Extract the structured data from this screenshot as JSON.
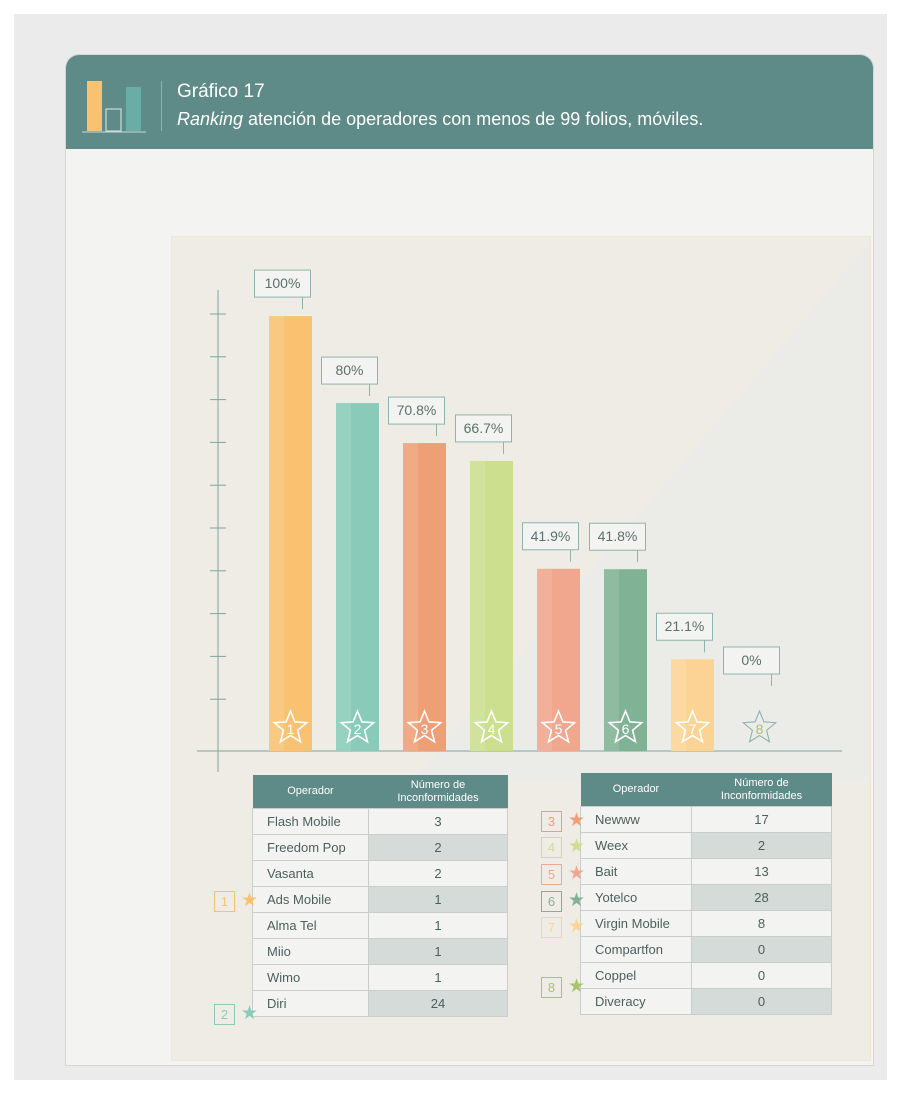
{
  "header": {
    "title": "Gráfico 17",
    "subtitle_em": "Ranking",
    "subtitle_rest": " atención de operadores con menos de 99 folios, móviles."
  },
  "chart_data": {
    "type": "bar",
    "categories": [
      "1",
      "2",
      "3",
      "4",
      "5",
      "6",
      "7",
      "8"
    ],
    "values": [
      100,
      80,
      70.8,
      66.7,
      41.9,
      41.8,
      21.1,
      0
    ],
    "labels": [
      "100%",
      "80%",
      "70.8%",
      "66.7%",
      "41.9%",
      "41.8%",
      "21.1%",
      "0%"
    ],
    "colors": [
      "#f9c270",
      "#89cbb8",
      "#ef9f76",
      "#cbdf8f",
      "#f1a68e",
      "#80b395",
      "#fbd495",
      "#a8c36a"
    ],
    "ylim": [
      0,
      106
    ],
    "grid": false
  },
  "table_left": {
    "col_operador": "Operador",
    "col_num_1": "Número de",
    "col_num_2": "Inconformidades",
    "rows": [
      {
        "name": "Flash Mobile",
        "value": "3"
      },
      {
        "name": "Freedom Pop",
        "value": "2"
      },
      {
        "name": "Vasanta",
        "value": "2"
      },
      {
        "name": "Ads Mobile",
        "value": "1"
      },
      {
        "name": "Alma Tel",
        "value": "1"
      },
      {
        "name": "Miio",
        "value": "1"
      },
      {
        "name": "Wimo",
        "value": "1"
      },
      {
        "name": "Diri",
        "value": "24"
      }
    ]
  },
  "table_right": {
    "col_operador": "Operador",
    "col_num_1": "Número de",
    "col_num_2": "Inconformidades",
    "rows": [
      {
        "name": "Newww",
        "value": "17"
      },
      {
        "name": "Weex",
        "value": "2"
      },
      {
        "name": "Bait",
        "value": "13"
      },
      {
        "name": "Yotelco",
        "value": "28"
      },
      {
        "name": "Virgin Mobile",
        "value": "8"
      },
      {
        "name": "Compartfon",
        "value": "0"
      },
      {
        "name": "Coppel",
        "value": "0"
      },
      {
        "name": "Diveracy",
        "value": "0"
      }
    ]
  },
  "markers_left": [
    {
      "rank": "1",
      "color": "#f9c270"
    },
    {
      "rank": "2",
      "color": "#89cbb8"
    }
  ],
  "markers_right": [
    {
      "rank": "3",
      "color": "#ef9f76"
    },
    {
      "rank": "4",
      "color": "#cbdf8f"
    },
    {
      "rank": "5",
      "color": "#f1a68e"
    },
    {
      "rank": "6",
      "color": "#80b395"
    },
    {
      "rank": "7",
      "color": "#fbd495"
    },
    {
      "rank": "8",
      "color": "#a8c36a"
    }
  ],
  "icons": {
    "header": "bar-chart-icon",
    "marker": "star-icon"
  }
}
